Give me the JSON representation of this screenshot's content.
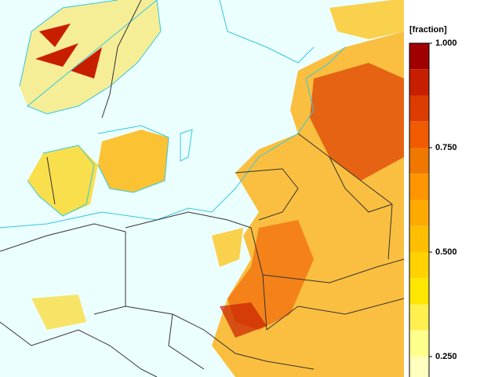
{
  "legend": {
    "title": "[fraction]",
    "range": [
      0.1875,
      1
    ],
    "ticks": [
      {
        "value": 1,
        "label": "1.000"
      },
      {
        "value": 0.75,
        "label": "0.750"
      },
      {
        "value": 0.5,
        "label": "0.500"
      },
      {
        "value": 0.25,
        "label": "0.250"
      }
    ],
    "colors": [
      "#a00000",
      "#c81e00",
      "#dc3c00",
      "#f05a00",
      "#f07800",
      "#ff9600",
      "#ffaa00",
      "#ffbe00",
      "#ffd200",
      "#ffe600",
      "#fff050",
      "#ffff8c",
      "#ffffc0"
    ]
  }
}
